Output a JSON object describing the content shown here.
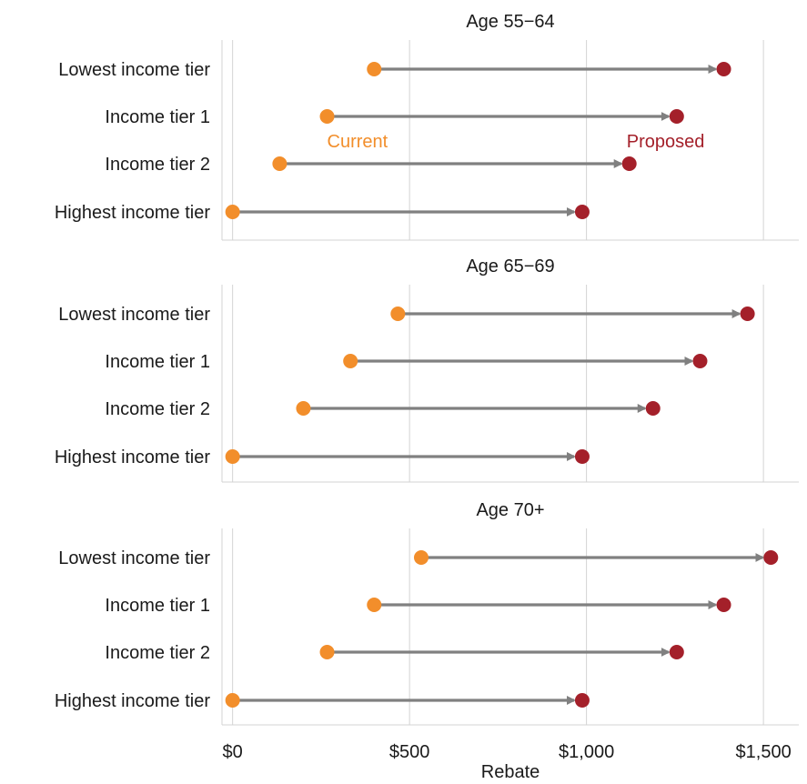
{
  "chart_data": {
    "type": "dumbbell",
    "xlabel": "Rebate",
    "xlim": [
      -30,
      1600
    ],
    "xticks": [
      0,
      500,
      1000,
      1500
    ],
    "xtick_labels": [
      "$0",
      "$500",
      "$1,000",
      "$1,500"
    ],
    "grid": true,
    "categories": [
      "Lowest income tier",
      "Income tier 1",
      "Income tier 2",
      "Highest income tier"
    ],
    "series_names": [
      "Current",
      "Proposed"
    ],
    "colors": {
      "Current": "#f28e2b",
      "Proposed": "#a4202a",
      "arrow": "#808080",
      "grid": "#d3d3d3"
    },
    "annotations": [
      {
        "text": "Current",
        "series": "Current",
        "panel": 0
      },
      {
        "text": "Proposed",
        "series": "Proposed",
        "panel": 0
      }
    ],
    "panels": [
      {
        "title": "Age 55−64",
        "current": [
          400,
          267,
          133,
          0
        ],
        "proposed": [
          1388,
          1255,
          1121,
          988
        ]
      },
      {
        "title": "Age 65−69",
        "current": [
          467,
          333,
          200,
          0
        ],
        "proposed": [
          1455,
          1321,
          1188,
          988
        ]
      },
      {
        "title": "Age 70+",
        "current": [
          533,
          400,
          267,
          0
        ],
        "proposed": [
          1521,
          1388,
          1255,
          988
        ]
      }
    ]
  }
}
